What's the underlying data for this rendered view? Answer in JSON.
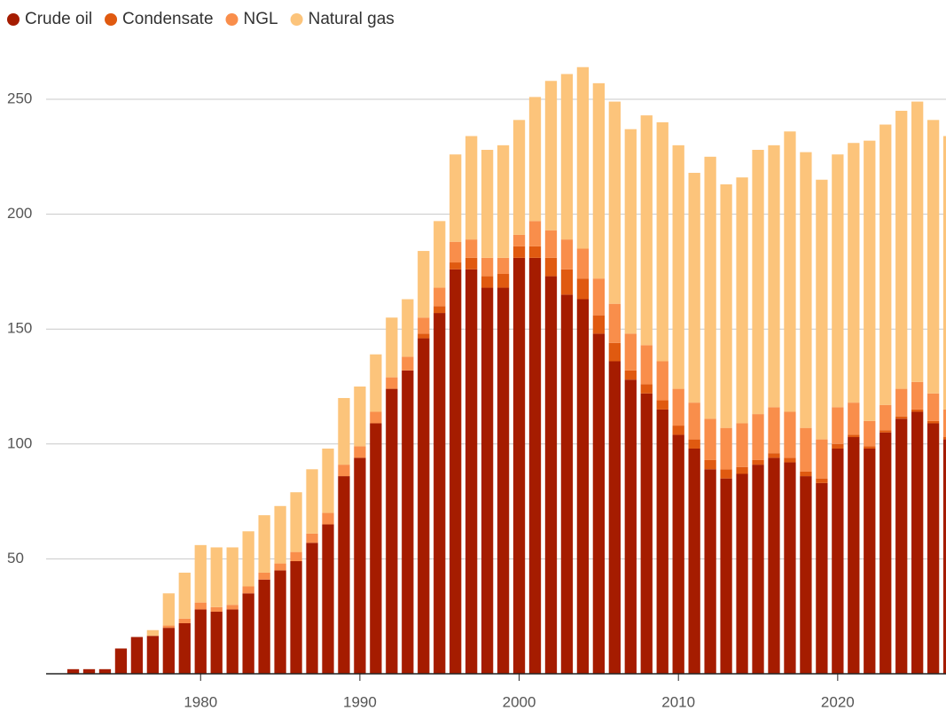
{
  "chart_data": {
    "type": "stacked_bar",
    "x": [
      1972,
      1973,
      1974,
      1975,
      1976,
      1977,
      1978,
      1979,
      1980,
      1981,
      1982,
      1983,
      1984,
      1985,
      1986,
      1987,
      1988,
      1989,
      1990,
      1991,
      1992,
      1993,
      1994,
      1995,
      1996,
      1997,
      1998,
      1999,
      2000,
      2001,
      2002,
      2003,
      2004,
      2005,
      2006,
      2007,
      2008,
      2009,
      2010,
      2011,
      2012,
      2013,
      2014,
      2015,
      2016,
      2017,
      2018,
      2019,
      2020,
      2021,
      2022,
      2023,
      2024,
      2025,
      2026,
      2027
    ],
    "series": [
      {
        "name": "Crude oil",
        "color": "#a51c00",
        "values": [
          2,
          2,
          2,
          11,
          16,
          16.5,
          20,
          22,
          28,
          27,
          28,
          35,
          41,
          45,
          49,
          57,
          65,
          86,
          94,
          109,
          124,
          132,
          146,
          157,
          176,
          176,
          168,
          168,
          181,
          181,
          173,
          165,
          163,
          148,
          136,
          128,
          122,
          115,
          104,
          98,
          89,
          85,
          87,
          91,
          94,
          92,
          86,
          83,
          98,
          103,
          98,
          105,
          111,
          114,
          109,
          102
        ]
      },
      {
        "name": "Condensate",
        "color": "#e05a10",
        "values": [
          0,
          0,
          0,
          0,
          0,
          0,
          0,
          0,
          0,
          0,
          0,
          0,
          0,
          0,
          0,
          0,
          0,
          0,
          0,
          0,
          0,
          0,
          2,
          3,
          3,
          5,
          5,
          6,
          5,
          5,
          8,
          11,
          9,
          8,
          8,
          4,
          4,
          4,
          4,
          4,
          4,
          4,
          3,
          2,
          2,
          2,
          2,
          2,
          2,
          1,
          1,
          1,
          1,
          1,
          1,
          1
        ]
      },
      {
        "name": "NGL",
        "color": "#f98e4b",
        "values": [
          0,
          0,
          0,
          0,
          0,
          0,
          1,
          2,
          3,
          2,
          2,
          3,
          3,
          3,
          4,
          4,
          5,
          5,
          5,
          5,
          5,
          6,
          7,
          8,
          9,
          8,
          8,
          7,
          5,
          11,
          12,
          13,
          13,
          16,
          17,
          16,
          17,
          17,
          16,
          16,
          18,
          18,
          19,
          20,
          20,
          20,
          19,
          17,
          16,
          14,
          11,
          11,
          12,
          12,
          12,
          12
        ]
      },
      {
        "name": "Natural gas",
        "color": "#fcc47b",
        "values": [
          0,
          0,
          0,
          0,
          0,
          2.5,
          14,
          20,
          25,
          26,
          25,
          24,
          25,
          25,
          26,
          28,
          28,
          29,
          26,
          25,
          26,
          25,
          29,
          29,
          38,
          45,
          47,
          49,
          50,
          54,
          65,
          72,
          79,
          85,
          88,
          89,
          100,
          104,
          106,
          100,
          114,
          106,
          107,
          115,
          114,
          122,
          120,
          113,
          110,
          113,
          122,
          122,
          121,
          122,
          119,
          119
        ]
      }
    ],
    "xlim": [
      1970.3,
      2026.8
    ],
    "xticks": [
      1980,
      1990,
      2000,
      2010,
      2020
    ],
    "ylim": [
      0,
      250
    ],
    "yticks": [
      50,
      100,
      150,
      200,
      250
    ],
    "grid": true,
    "legend": "top-left"
  }
}
